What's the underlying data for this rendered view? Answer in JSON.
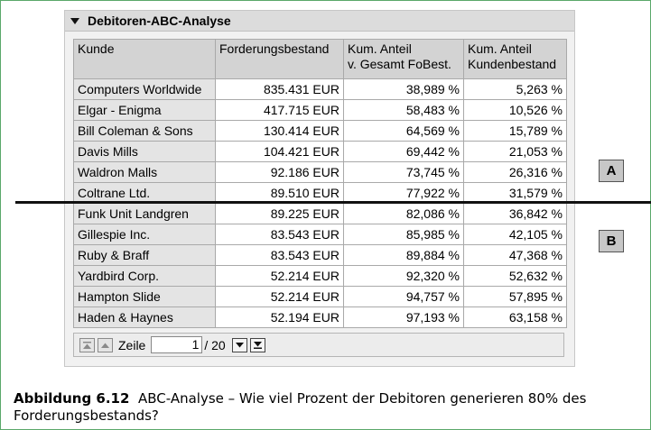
{
  "panel": {
    "title": "Debitoren-ABC-Analyse"
  },
  "table": {
    "headers": [
      [
        "Kunde"
      ],
      [
        "Forderungsbestand"
      ],
      [
        "Kum. Anteil",
        "v. Gesamt FoBest."
      ],
      [
        "Kum. Anteil",
        "Kundenbestand"
      ]
    ],
    "rows": [
      [
        "Computers Worldwide",
        "835.431 EUR",
        "38,989 %",
        "5,263 %"
      ],
      [
        "Elgar - Enigma",
        "417.715 EUR",
        "58,483 %",
        "10,526 %"
      ],
      [
        "Bill Coleman & Sons",
        "130.414 EUR",
        "64,569 %",
        "15,789 %"
      ],
      [
        "Davis Mills",
        "104.421 EUR",
        "69,442 %",
        "21,053 %"
      ],
      [
        "Waldron Malls",
        "92.186 EUR",
        "73,745 %",
        "26,316 %"
      ],
      [
        "Coltrane Ltd.",
        "89.510 EUR",
        "77,922 %",
        "31,579 %"
      ],
      [
        "Funk Unit Landgren",
        "89.225 EUR",
        "82,086 %",
        "36,842 %"
      ],
      [
        "Gillespie Inc.",
        "83.543 EUR",
        "85,985 %",
        "42,105 %"
      ],
      [
        "Ruby & Braff",
        "83.543 EUR",
        "89,884 %",
        "47,368 %"
      ],
      [
        "Yardbird Corp.",
        "52.214 EUR",
        "92,320 %",
        "52,632 %"
      ],
      [
        "Hampton Slide",
        "52.214 EUR",
        "94,757 %",
        "57,895 %"
      ],
      [
        "Haden & Haynes",
        "52.194 EUR",
        "97,193 %",
        "63,158 %"
      ]
    ]
  },
  "pager": {
    "label": "Zeile",
    "current": "1",
    "total": "/ 20"
  },
  "markers": {
    "a": "A",
    "b": "B"
  },
  "caption": {
    "label": "Abbildung 6.12",
    "line1": "ABC-Analyse – Wie viel Prozent der Debitoren generieren 80% des",
    "line2": "Forderungsbestands?"
  }
}
